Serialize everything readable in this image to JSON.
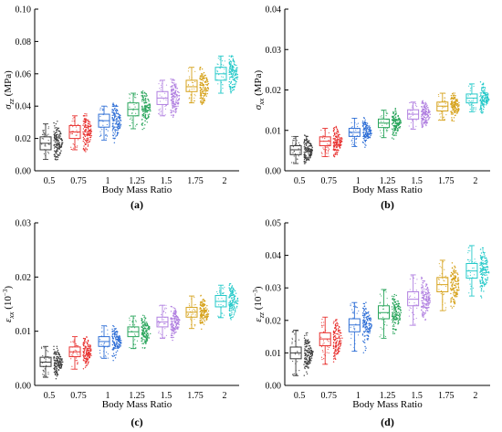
{
  "figure": {
    "colors": [
      "#3a3a3a",
      "#e8312f",
      "#2f6fd6",
      "#2aa55c",
      "#b07fe0",
      "#d6a21b",
      "#25c9c9"
    ]
  },
  "chart_data": [
    {
      "panel_label": "(a)",
      "type": "box_scatter",
      "ylabel_main": "σ",
      "ylabel_sub": "zz",
      "ylabel_unit": " (MPa)",
      "xlabel": "Body Mass Ratio",
      "categories": [
        "0.5",
        "0.75",
        "1",
        "1.25",
        "1.5",
        "1.75",
        "2"
      ],
      "ylim": [
        0,
        0.1
      ],
      "yticks": [
        "0.00",
        "0.02",
        "0.04",
        "0.06",
        "0.08",
        "0.10"
      ],
      "ytick_values": [
        0,
        0.02,
        0.04,
        0.06,
        0.08,
        0.1
      ],
      "medians": [
        0.017,
        0.024,
        0.031,
        0.038,
        0.045,
        0.052,
        0.06
      ],
      "q1": [
        0.013,
        0.02,
        0.027,
        0.034,
        0.041,
        0.049,
        0.056
      ],
      "q3": [
        0.021,
        0.028,
        0.035,
        0.042,
        0.049,
        0.056,
        0.064
      ],
      "whisker_low": [
        0.007,
        0.013,
        0.019,
        0.026,
        0.034,
        0.042,
        0.048
      ],
      "whisker_high": [
        0.029,
        0.034,
        0.04,
        0.048,
        0.056,
        0.064,
        0.071
      ]
    },
    {
      "panel_label": "(b)",
      "type": "box_scatter",
      "ylabel_main": "σ",
      "ylabel_sub": "xx",
      "ylabel_unit": " (MPa)",
      "xlabel": "Body Mass Ratio",
      "categories": [
        "0.5",
        "0.75",
        "1",
        "1.25",
        "1.5",
        "1.75",
        "2"
      ],
      "ylim": [
        0,
        0.04
      ],
      "yticks": [
        "0.00",
        "0.01",
        "0.02",
        "0.03",
        "0.04"
      ],
      "ytick_values": [
        0,
        0.01,
        0.02,
        0.03,
        0.04
      ],
      "medians": [
        0.0052,
        0.0073,
        0.0095,
        0.0118,
        0.014,
        0.016,
        0.018
      ],
      "q1": [
        0.004,
        0.0062,
        0.0085,
        0.0107,
        0.0128,
        0.0148,
        0.0168
      ],
      "q3": [
        0.0062,
        0.0084,
        0.0105,
        0.0128,
        0.0151,
        0.017,
        0.019
      ],
      "whisker_low": [
        0.0018,
        0.0035,
        0.006,
        0.0082,
        0.0103,
        0.0125,
        0.0146
      ],
      "whisker_high": [
        0.0085,
        0.0105,
        0.013,
        0.015,
        0.017,
        0.0192,
        0.0215
      ]
    },
    {
      "panel_label": "(c)",
      "type": "box_scatter",
      "ylabel_main": "ε",
      "ylabel_sub": "xx",
      "ylabel_unit": " (10",
      "ylabel_exp": "−3",
      "ylabel_close": ")",
      "xlabel": "Body Mass Ratio",
      "categories": [
        "0.5",
        "0.75",
        "1",
        "1.25",
        "1.5",
        "1.75",
        "2"
      ],
      "ylim": [
        0,
        0.03
      ],
      "yticks": [
        "0.00",
        "0.01",
        "0.02",
        "0.03"
      ],
      "ytick_values": [
        0,
        0.01,
        0.02,
        0.03
      ],
      "medians": [
        0.0043,
        0.0062,
        0.0081,
        0.0099,
        0.0117,
        0.0135,
        0.0155
      ],
      "q1": [
        0.0035,
        0.0053,
        0.0072,
        0.009,
        0.0108,
        0.0126,
        0.0145
      ],
      "q3": [
        0.0052,
        0.0071,
        0.009,
        0.0108,
        0.0126,
        0.0144,
        0.0166
      ],
      "whisker_low": [
        0.0015,
        0.003,
        0.005,
        0.0068,
        0.0087,
        0.0105,
        0.0125
      ],
      "whisker_high": [
        0.0072,
        0.009,
        0.011,
        0.0128,
        0.0148,
        0.0165,
        0.0185
      ]
    },
    {
      "panel_label": "(d)",
      "type": "box_scatter",
      "ylabel_main": "ε",
      "ylabel_sub": "zz",
      "ylabel_unit": " (10",
      "ylabel_exp": "−3",
      "ylabel_close": ")",
      "xlabel": "Body Mass Ratio",
      "categories": [
        "0.5",
        "0.75",
        "1",
        "1.25",
        "1.5",
        "1.75",
        "2"
      ],
      "ylim": [
        0,
        0.05
      ],
      "yticks": [
        "0.00",
        "0.01",
        "0.02",
        "0.03",
        "0.04",
        "0.05"
      ],
      "ytick_values": [
        0,
        0.01,
        0.02,
        0.03,
        0.04,
        0.05
      ],
      "medians": [
        0.01,
        0.0143,
        0.0186,
        0.0224,
        0.0265,
        0.031,
        0.0352
      ],
      "q1": [
        0.0082,
        0.0122,
        0.0165,
        0.0205,
        0.0245,
        0.0288,
        0.033
      ],
      "q3": [
        0.0118,
        0.0162,
        0.0205,
        0.0245,
        0.0288,
        0.0332,
        0.0375
      ],
      "whisker_low": [
        0.003,
        0.0065,
        0.0105,
        0.0145,
        0.0185,
        0.023,
        0.0275
      ],
      "whisker_high": [
        0.017,
        0.021,
        0.0255,
        0.0295,
        0.034,
        0.0385,
        0.043
      ]
    }
  ]
}
